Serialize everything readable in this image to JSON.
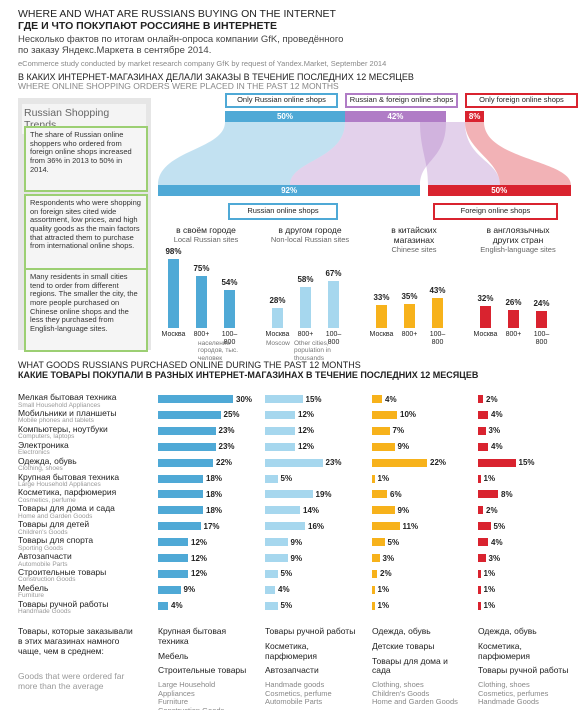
{
  "header": {
    "title_en": "WHERE AND WHAT ARE RUSSIANS BUYING ON THE INTERNET",
    "title_ru": "ГДЕ И ЧТО ПОКУПАЮТ РОССИЯНЕ В ИНТЕРНЕТЕ",
    "intro_ru": "Несколько фактов по итогам онлайн-опроса компании GfK, проведённого по заказу Яндекс.Маркета в сентябре 2014.",
    "intro_en": "eCommerce study conducted by market research company GfK by request of Yandex.Market, September 2014"
  },
  "section1": {
    "title_ru": "В КАКИХ ИНТЕРНЕТ-МАГАЗИНАХ ДЕЛАЛИ ЗАКАЗЫ В ТЕЧЕНИЕ ПОСЛЕДНИХ 12 МЕСЯЦЕВ",
    "title_en": "WHERE ONLINE SHOPPING ORDERS WERE PLACED IN THE PAST 12 MONTHS"
  },
  "sidebar": {
    "title": "Russian Shopping Trends",
    "notes": [
      "The share of Russian online shoppers who ordered from foreign online shops increased from 36% in 2013 to 50% in 2014.",
      "Respondents who were shopping on foreign sites cited wide assortment, low prices, and high quality goods as the main factors that attracted them to purchase from international online shops.",
      "Many residents in small cities tend to order from different regions.  The smaller the city, the more people purchased on Chinese online shops and the less they purchased from English-language sites."
    ]
  },
  "flow": {
    "top": [
      {
        "name": "Only Russian online shops",
        "value": 50,
        "label": "50%",
        "color": "#4fa9d6"
      },
      {
        "name": "Russian & foreign online shops",
        "value": 42,
        "label": "42%",
        "color": "#b07cc6"
      },
      {
        "name": "Only foreign online shops",
        "value": 8,
        "label": "8%",
        "color": "#d9232f"
      }
    ],
    "middle": [
      {
        "name": "Russian online shops",
        "value": 92,
        "label": "92%",
        "color": "#4fa9d6"
      },
      {
        "name": "Foreign online shops",
        "value": 50,
        "label": "50%",
        "color": "#d9232f"
      }
    ]
  },
  "groups": [
    {
      "title_ru": "в своём городе",
      "title_en": "Local Russian sites",
      "color": "#4fa9d6",
      "categories": [
        "Москва",
        "800+",
        "100–800"
      ],
      "values": [
        98,
        75,
        54
      ],
      "labels": [
        "98%",
        "75%",
        "54%"
      ],
      "notes": [
        "население городов, тыс. человек"
      ]
    },
    {
      "title_ru": "в другом городе",
      "title_en": "Non-local Russian sites",
      "color": "#a6d7ee",
      "categories": [
        "Москва",
        "800+",
        "100–800"
      ],
      "values": [
        28,
        58,
        67
      ],
      "labels": [
        "28%",
        "58%",
        "67%"
      ],
      "notes": [
        "Moscow",
        "Other cities, population in thousands"
      ]
    },
    {
      "title_ru": "в китайских магазинах",
      "title_en": "Chinese sites",
      "color": "#f7b21b",
      "categories": [
        "Москва",
        "800+",
        "100–800"
      ],
      "values": [
        33,
        35,
        43
      ],
      "labels": [
        "33%",
        "35%",
        "43%"
      ],
      "notes": []
    },
    {
      "title_ru": "в англоязычных других стран",
      "title_en": "English-language sites",
      "color": "#d9232f",
      "categories": [
        "Москва",
        "800+",
        "100–800"
      ],
      "values": [
        32,
        26,
        24
      ],
      "labels": [
        "32%",
        "26%",
        "24%"
      ],
      "notes": []
    }
  ],
  "section2": {
    "title_en": "WHAT GOODS RUSSIANS PURCHASED ONLINE DURING THE PAST 12 MONTHS",
    "title_ru": "КАКИЕ ТОВАРЫ ПОКУПАЛИ В РАЗНЫХ ИНТЕРНЕТ-МАГАЗИНАХ В ТЕЧЕНИЕ ПОСЛЕДНИХ 12 МЕСЯЦЕВ"
  },
  "goods": {
    "colors": [
      "#4fa9d6",
      "#a6d7ee",
      "#f7b21b",
      "#d9232f"
    ],
    "rows": [
      {
        "ru": "Мелкая бытовая техника",
        "en": "Small Household Appliances",
        "values": [
          30,
          15,
          4,
          2
        ],
        "labels": [
          "30%",
          "15%",
          "4%",
          "2%"
        ]
      },
      {
        "ru": "Мобильники и планшеты",
        "en": "Mobile phones and tablets",
        "values": [
          25,
          12,
          10,
          4
        ],
        "labels": [
          "25%",
          "12%",
          "10%",
          "4%"
        ]
      },
      {
        "ru": "Компьютеры, ноутбуки",
        "en": "Computers, laptops",
        "values": [
          23,
          12,
          7,
          3
        ],
        "labels": [
          "23%",
          "12%",
          "7%",
          "3%"
        ]
      },
      {
        "ru": "Электроника",
        "en": "Electronics",
        "values": [
          23,
          12,
          9,
          4
        ],
        "labels": [
          "23%",
          "12%",
          "9%",
          "4%"
        ]
      },
      {
        "ru": "Одежда, обувь",
        "en": "Clothing, shoes",
        "values": [
          22,
          23,
          22,
          15
        ],
        "labels": [
          "22%",
          "23%",
          "22%",
          "15%"
        ]
      },
      {
        "ru": "Крупная бытовая техника",
        "en": "Large Household Appliances",
        "values": [
          18,
          5,
          1,
          1
        ],
        "labels": [
          "18%",
          "5%",
          "1%",
          "1%"
        ]
      },
      {
        "ru": "Косметика, парфюмерия",
        "en": "Cosmetics, perfume",
        "values": [
          18,
          19,
          6,
          8
        ],
        "labels": [
          "18%",
          "19%",
          "6%",
          "8%"
        ]
      },
      {
        "ru": "Товары для дома и сада",
        "en": "Home and Garden Goods",
        "values": [
          18,
          14,
          9,
          2
        ],
        "labels": [
          "18%",
          "14%",
          "9%",
          "2%"
        ]
      },
      {
        "ru": "Товары для детей",
        "en": "Children's Goods",
        "values": [
          17,
          16,
          11,
          5
        ],
        "labels": [
          "17%",
          "16%",
          "11%",
          "5%"
        ]
      },
      {
        "ru": "Товары для спорта",
        "en": "Sporting Goods",
        "values": [
          12,
          9,
          5,
          4
        ],
        "labels": [
          "12%",
          "9%",
          "5%",
          "4%"
        ]
      },
      {
        "ru": "Автозапчасти",
        "en": "Automobile Parts",
        "values": [
          12,
          9,
          3,
          3
        ],
        "labels": [
          "12%",
          "9%",
          "3%",
          "3%"
        ]
      },
      {
        "ru": "Строительные товары",
        "en": "Construction Goods",
        "values": [
          12,
          5,
          2,
          1
        ],
        "labels": [
          "12%",
          "5%",
          "2%",
          "1%"
        ]
      },
      {
        "ru": "Мебель",
        "en": "Furniture",
        "values": [
          9,
          4,
          1,
          1
        ],
        "labels": [
          "9%",
          "4%",
          "1%",
          "1%"
        ]
      },
      {
        "ru": "Товары ручной работы",
        "en": "Handmade Goods",
        "values": [
          4,
          5,
          1,
          1
        ],
        "labels": [
          "4%",
          "5%",
          "1%",
          "1%"
        ]
      }
    ]
  },
  "footer": {
    "lead_ru": "Товары, которые заказывали в этих магазинах намного чаще, чем в среднем:",
    "lead_en": "Goods that were ordered far more than the average",
    "columns": [
      {
        "ru": [
          "Крупная бытовая техника",
          "Мебель",
          "Строительные товары"
        ],
        "en": [
          "Large Household Appliances",
          "Furniture",
          "Construction Goods"
        ]
      },
      {
        "ru": [
          "Товары ручной работы",
          "Косметика, парфюмерия",
          "Автозапчасти"
        ],
        "en": [
          "Handmade goods",
          "Cosmetics, perfume",
          "Automobile Parts"
        ]
      },
      {
        "ru": [
          "Одежда, обувь",
          "Детские товары",
          "Товары для дома и сада"
        ],
        "en": [
          "Clothing, shoes",
          "Children's Goods",
          "Home and Garden Goods"
        ]
      },
      {
        "ru": [
          "Одежда, обувь",
          "Косметика, парфюмерия",
          "Товары ручной работы"
        ],
        "en": [
          "Clothing, shoes",
          "Cosmetics, perfumes",
          "Handmade Goods"
        ]
      }
    ]
  }
}
